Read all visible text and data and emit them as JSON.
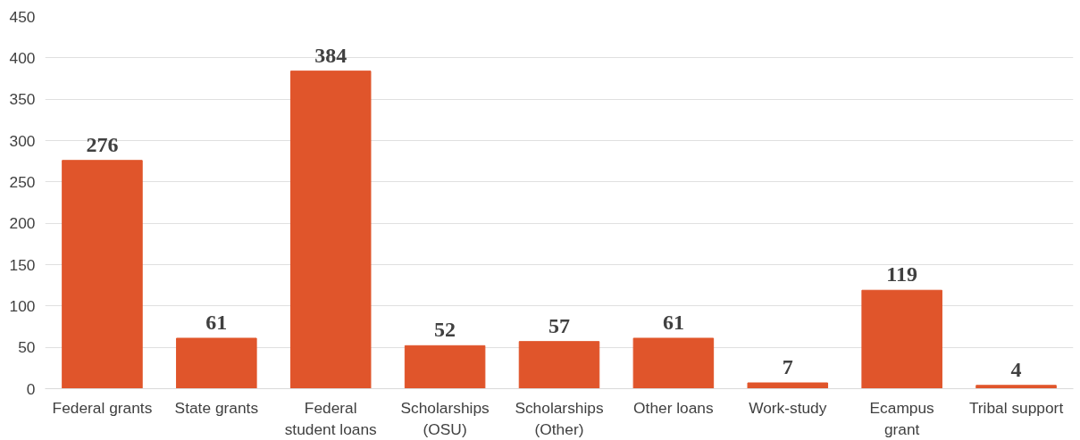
{
  "chart_data": {
    "type": "bar",
    "categories": [
      "Federal grants",
      "State grants",
      "Federal\nstudent loans",
      "Scholarships\n(OSU)",
      "Scholarships\n(Other)",
      "Other loans",
      "Work-study",
      "Ecampus\ngrant",
      "Tribal support"
    ],
    "values": [
      276,
      61,
      384,
      52,
      57,
      61,
      7,
      119,
      4
    ],
    "color": "#e0552b",
    "ylim": [
      0,
      450
    ],
    "yticks": [
      0,
      50,
      100,
      150,
      200,
      250,
      300,
      350,
      400,
      450
    ],
    "grid": "y",
    "data_labels": true
  }
}
